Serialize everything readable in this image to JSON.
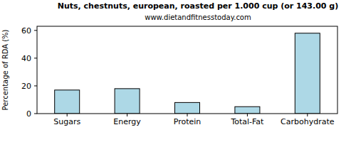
{
  "chart_data": {
    "type": "bar",
    "title": "Nuts, chestnuts, european, roasted per 1.000 cup (or 143.00 g)",
    "subtitle": "www.dietandfitnesstoday.com",
    "y_label": "Percentage of RDA (%)",
    "categories": [
      "Sugars",
      "Energy",
      "Protein",
      "Total-Fat",
      "Carbohydrate"
    ],
    "values": [
      17,
      18,
      8,
      5,
      58
    ],
    "color": "#add8e6",
    "ylim": [
      0,
      63
    ],
    "yticks": [
      0,
      20,
      40,
      60
    ],
    "grid": false
  }
}
